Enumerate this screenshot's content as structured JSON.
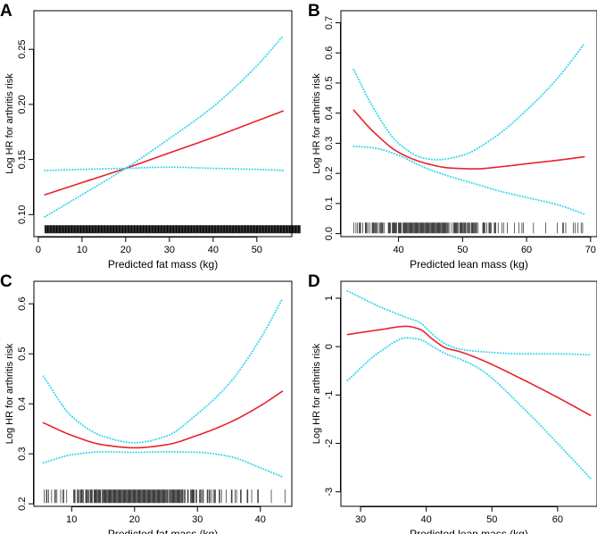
{
  "chart_data": [
    {
      "panel": "A",
      "type": "line",
      "xlabel": "Predicted fat mass (kg)",
      "ylabel": "Log HR for arthritis risk",
      "xlim": [
        -1,
        58
      ],
      "ylim": [
        0.08,
        0.285
      ],
      "xticks": [
        0,
        10,
        20,
        30,
        40,
        50
      ],
      "yticks": [
        0.1,
        0.15,
        0.2,
        0.25
      ],
      "ytick_labels": [
        "0.10",
        "0.15",
        "0.20",
        "0.25"
      ],
      "rug": [
        1.5,
        60,
        3
      ],
      "series": [
        {
          "name": "estimate",
          "color": "#e8222a",
          "style": "solid",
          "x": [
            1.5,
            10,
            20,
            30,
            40,
            50,
            56
          ],
          "y": [
            0.118,
            0.129,
            0.142,
            0.156,
            0.17,
            0.185,
            0.194
          ]
        },
        {
          "name": "upper 95% CI",
          "color": "#33d6ea",
          "style": "dotted",
          "x": [
            1.5,
            10,
            20,
            30,
            40,
            50,
            56
          ],
          "y": [
            0.14,
            0.141,
            0.142,
            0.143,
            0.142,
            0.141,
            0.14
          ]
        },
        {
          "name": "lower 95% CI",
          "color": "#33d6ea",
          "style": "dotted",
          "x": [
            1.5,
            10,
            20,
            30,
            40,
            50,
            56
          ],
          "y": [
            0.098,
            0.118,
            0.142,
            0.169,
            0.198,
            0.235,
            0.262
          ]
        }
      ]
    },
    {
      "panel": "B",
      "type": "line",
      "xlabel": "Predicted lean mass (kg)",
      "ylabel": "Log HR for arthritis risk",
      "xlim": [
        31,
        71
      ],
      "ylim": [
        -0.01,
        0.74
      ],
      "xticks": [
        40,
        50,
        60,
        70
      ],
      "yticks": [
        0.0,
        0.1,
        0.2,
        0.3,
        0.4,
        0.5,
        0.6,
        0.7
      ],
      "ytick_labels": [
        "0.0",
        "0.1",
        "0.2",
        "0.3",
        "0.4",
        "0.5",
        "0.6",
        "0.7"
      ],
      "rug": [
        33,
        70,
        4
      ],
      "series": [
        {
          "name": "estimate",
          "color": "#e8222a",
          "style": "solid",
          "x": [
            33,
            36,
            40,
            44,
            48,
            52,
            56,
            60,
            65,
            69
          ],
          "y": [
            0.41,
            0.34,
            0.27,
            0.235,
            0.218,
            0.215,
            0.222,
            0.232,
            0.244,
            0.255
          ]
        },
        {
          "name": "upper 95% CI",
          "color": "#33d6ea",
          "style": "dotted",
          "x": [
            33,
            36,
            40,
            44,
            46,
            50,
            55,
            60,
            65,
            69
          ],
          "y": [
            0.545,
            0.42,
            0.3,
            0.25,
            0.245,
            0.26,
            0.32,
            0.41,
            0.52,
            0.63
          ]
        },
        {
          "name": "lower 95% CI",
          "color": "#33d6ea",
          "style": "dotted",
          "x": [
            33,
            36,
            40,
            44,
            48,
            52,
            56,
            60,
            65,
            69
          ],
          "y": [
            0.29,
            0.285,
            0.26,
            0.22,
            0.19,
            0.165,
            0.14,
            0.12,
            0.095,
            0.065
          ]
        }
      ]
    },
    {
      "panel": "C",
      "type": "line",
      "xlabel": "Predicted fat mass (kg)",
      "ylabel": "Log HR for arthritis risk",
      "xlim": [
        4,
        45
      ],
      "ylim": [
        0.195,
        0.645
      ],
      "xticks": [
        10,
        20,
        30,
        40
      ],
      "yticks": [
        0.2,
        0.3,
        0.4,
        0.5,
        0.6
      ],
      "ytick_labels": [
        "0.2",
        "0.3",
        "0.4",
        "0.5",
        "0.6"
      ],
      "rug": [
        5.5,
        44,
        5
      ],
      "series": [
        {
          "name": "estimate",
          "color": "#e8222a",
          "style": "solid",
          "x": [
            5.5,
            10,
            15,
            20,
            25,
            30,
            35,
            40,
            43.5
          ],
          "y": [
            0.362,
            0.337,
            0.318,
            0.312,
            0.318,
            0.337,
            0.362,
            0.396,
            0.425
          ]
        },
        {
          "name": "upper 95% CI",
          "color": "#33d6ea",
          "style": "dotted",
          "x": [
            5.5,
            10,
            15,
            20,
            25,
            30,
            35,
            40,
            43.5
          ],
          "y": [
            0.455,
            0.375,
            0.335,
            0.322,
            0.335,
            0.38,
            0.44,
            0.53,
            0.61
          ]
        },
        {
          "name": "lower 95% CI",
          "color": "#33d6ea",
          "style": "dotted",
          "x": [
            5.5,
            10,
            15,
            20,
            25,
            30,
            35,
            40,
            43.5
          ],
          "y": [
            0.282,
            0.298,
            0.304,
            0.303,
            0.304,
            0.303,
            0.295,
            0.272,
            0.254
          ]
        }
      ]
    },
    {
      "panel": "D",
      "type": "line",
      "xlabel": "Predicted lean mass (kg)",
      "ylabel": "Log HR for arthritis risk",
      "xlim": [
        27,
        66
      ],
      "ylim": [
        -3.3,
        1.35
      ],
      "xticks": [
        30,
        40,
        50,
        60
      ],
      "yticks": [
        -3,
        -2,
        -1,
        0,
        1
      ],
      "ytick_labels": [
        "-3",
        "-2",
        "-1",
        "0",
        "1"
      ],
      "rug": [],
      "series": [
        {
          "name": "estimate",
          "color": "#e8222a",
          "style": "solid",
          "x": [
            28,
            33,
            37,
            39,
            41,
            43,
            45,
            48,
            55,
            60,
            65
          ],
          "y": [
            0.25,
            0.35,
            0.42,
            0.36,
            0.15,
            -0.03,
            -0.1,
            -0.25,
            -0.7,
            -1.05,
            -1.42
          ]
        },
        {
          "name": "upper 95% CI",
          "color": "#33d6ea",
          "style": "dotted",
          "x": [
            28,
            33,
            37,
            39,
            41,
            43,
            45,
            48,
            55,
            60,
            65
          ],
          "y": [
            1.15,
            0.82,
            0.6,
            0.5,
            0.25,
            0.05,
            -0.05,
            -0.1,
            -0.15,
            -0.15,
            -0.17
          ]
        },
        {
          "name": "lower 95% CI",
          "color": "#33d6ea",
          "style": "dotted",
          "x": [
            28,
            33,
            37,
            39,
            41,
            43,
            45,
            48,
            55,
            60,
            65
          ],
          "y": [
            -0.7,
            -0.1,
            0.18,
            0.15,
            0.0,
            -0.15,
            -0.25,
            -0.45,
            -1.3,
            -2.0,
            -2.72
          ]
        }
      ]
    }
  ]
}
